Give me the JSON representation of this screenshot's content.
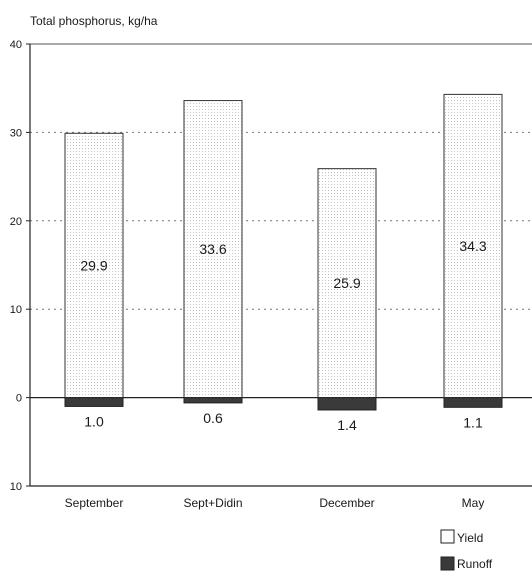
{
  "chart_data": {
    "type": "bar",
    "title": "Total phosphorus, kg/ha",
    "xlabel": "",
    "ylabel": "",
    "categories": [
      "September",
      "Sept+Didin",
      "December",
      "May"
    ],
    "series": [
      {
        "name": "Yield",
        "values": [
          29.9,
          33.6,
          25.9,
          34.3
        ],
        "labels": [
          "29.9",
          "33.6",
          "25.9",
          "34.3"
        ],
        "color": "#ffffff",
        "pattern": "fine-dotted"
      },
      {
        "name": "Runoff",
        "values": [
          1.0,
          0.6,
          1.4,
          1.1
        ],
        "labels": [
          "1.0",
          "0.6",
          "1.4",
          "1.1"
        ],
        "color": "#3a3a3a",
        "direction": "downward"
      }
    ],
    "ylim": [
      -10,
      40
    ],
    "yticks": [
      {
        "value": 40,
        "label": "40"
      },
      {
        "value": 30,
        "label": "30"
      },
      {
        "value": 20,
        "label": "20"
      },
      {
        "value": 10,
        "label": "10"
      },
      {
        "value": 0,
        "label": "0"
      },
      {
        "value": -10,
        "label": "10"
      }
    ],
    "grid": "horizontal dotted at 10, 20, 30",
    "legend_position": "bottom-right"
  }
}
